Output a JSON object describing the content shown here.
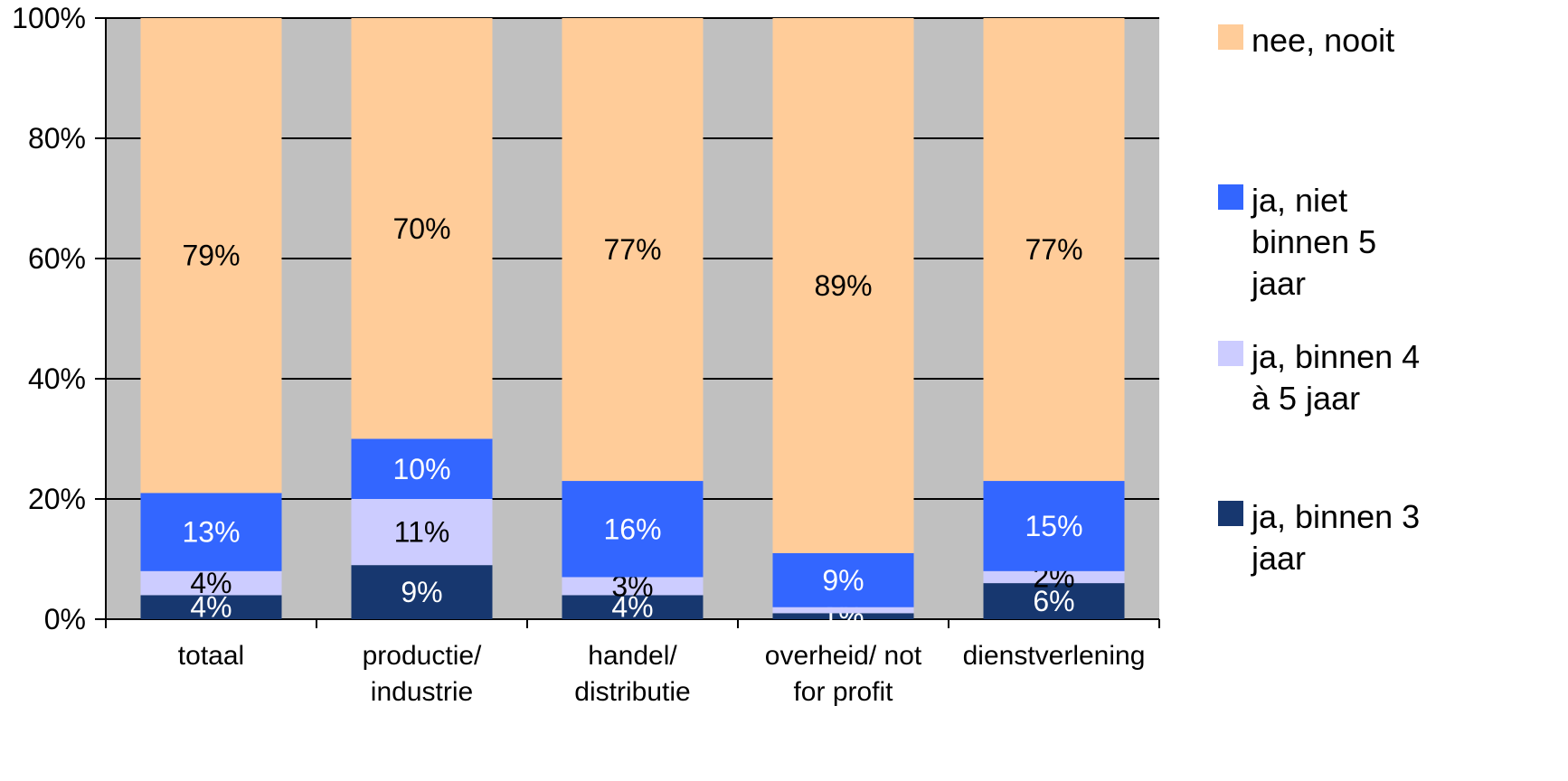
{
  "chart_data": {
    "type": "bar",
    "stacked": true,
    "percent_axis": true,
    "categories": [
      "totaal",
      "productie/ industrie",
      "handel/ distributie",
      "overheid/ not for profit",
      "dienstverlening"
    ],
    "series": [
      {
        "name": "ja, binnen 3 jaar",
        "color": "#17376f",
        "values": [
          4,
          9,
          4,
          1,
          6
        ],
        "labels": [
          "4%",
          "9%",
          "4%",
          "1%",
          "6%"
        ],
        "label_color": "#ffffff"
      },
      {
        "name": "ja, binnen 4 à 5 jaar",
        "color": "#ccccff",
        "values": [
          4,
          11,
          3,
          1,
          2
        ],
        "labels": [
          "4%",
          "11%",
          "3%",
          "",
          "2%"
        ],
        "label_color": "#000000"
      },
      {
        "name": "ja, niet binnen 5 jaar",
        "color": "#3366ff",
        "values": [
          13,
          10,
          16,
          9,
          15
        ],
        "labels": [
          "13%",
          "10%",
          "16%",
          "9%",
          "15%"
        ],
        "label_color": "#ffffff"
      },
      {
        "name": "nee, nooit",
        "color": "#ffcc99",
        "values": [
          79,
          70,
          77,
          89,
          77
        ],
        "labels": [
          "79%",
          "70%",
          "77%",
          "89%",
          "77%"
        ],
        "label_color": "#000000"
      }
    ],
    "ylim": [
      0,
      100
    ],
    "yticks": [
      "0%",
      "20%",
      "40%",
      "60%",
      "80%",
      "100%"
    ],
    "grid": true,
    "plot_background": "#c0c0c0",
    "legend_position": "right",
    "legend_order": [
      "nee, nooit",
      "ja, niet binnen 5 jaar",
      "ja, binnen 4 à 5 jaar",
      "ja, binnen 3 jaar"
    ]
  }
}
